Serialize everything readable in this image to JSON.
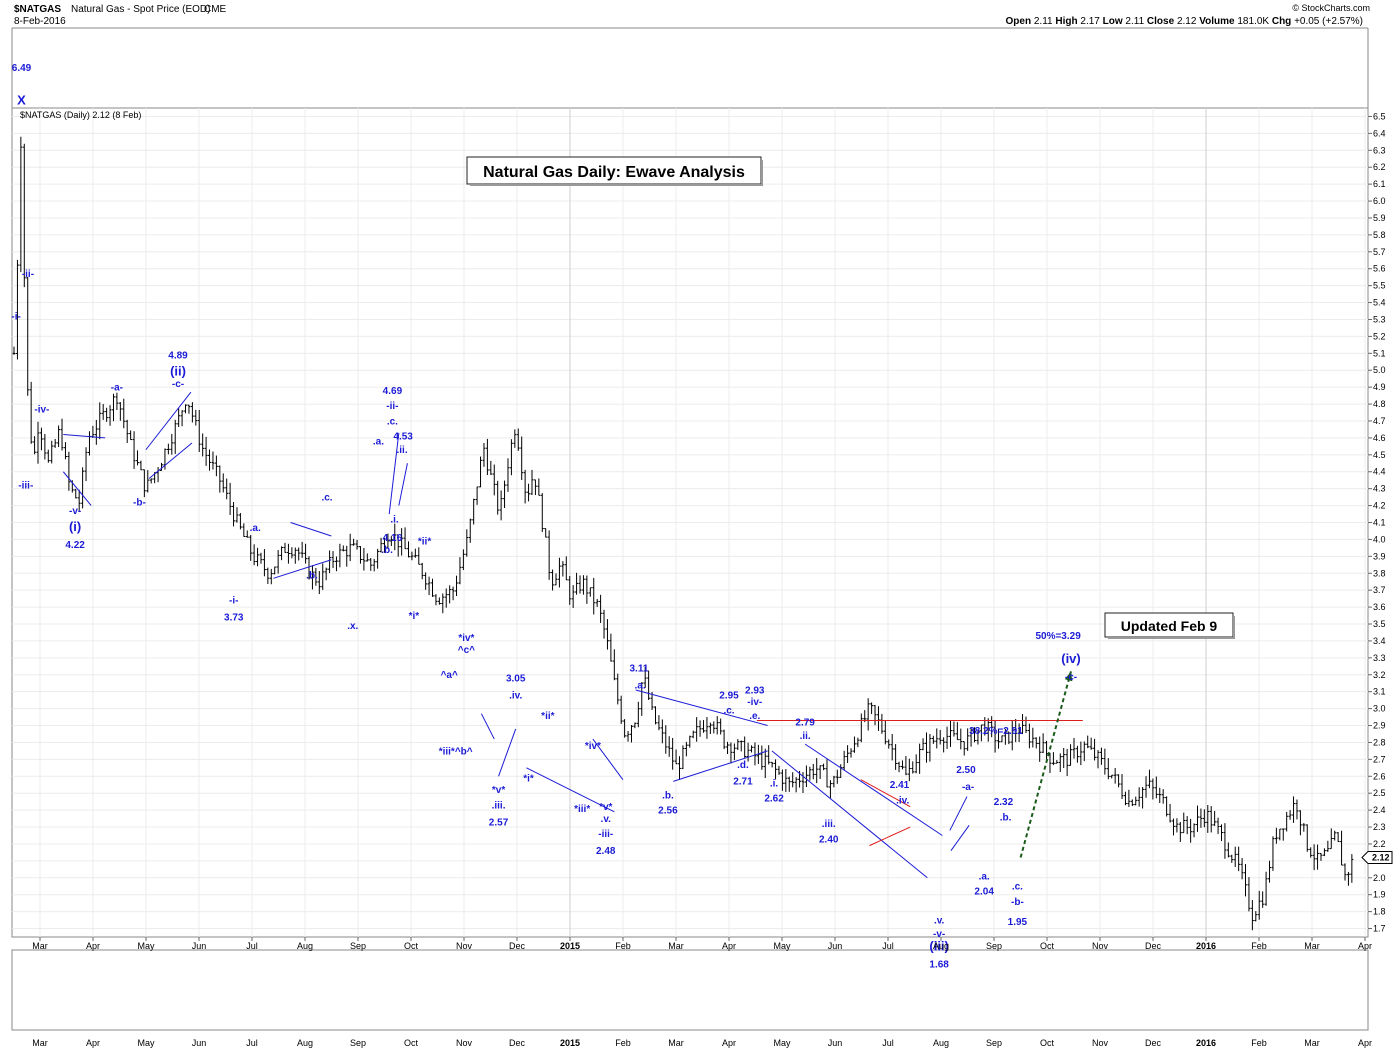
{
  "header": {
    "symbol": "$NATGAS",
    "description": "Natural Gas - Spot Price (EOD)",
    "exchange": "CME",
    "date": "8-Feb-2016",
    "ohlc_labels": [
      "Open",
      "High",
      "Low",
      "Close",
      "Volume",
      "Chg"
    ],
    "ohlc_values": [
      "2.11",
      "2.17",
      "2.11",
      "2.12",
      "181.0K",
      "+0.05 (+2.57%)"
    ],
    "copyright": "© StockCharts.com",
    "legend": "$NATGAS (Daily) 2.12 (8 Feb)"
  },
  "boxes": {
    "title": "Natural Gas Daily: Ewave Analysis",
    "updated": "Updated Feb 9"
  },
  "chart_data": {
    "type": "ohlc",
    "title": "Natural Gas Daily: Ewave Analysis",
    "ylim": [
      1.65,
      6.55
    ],
    "y_ticks": [
      "1.7",
      "1.8",
      "1.9",
      "2.0",
      "2.1",
      "2.2",
      "2.3",
      "2.4",
      "2.5",
      "2.6",
      "2.7",
      "2.8",
      "2.9",
      "3.0",
      "3.1",
      "3.2",
      "3.3",
      "3.4",
      "3.5",
      "3.6",
      "3.7",
      "3.8",
      "3.9",
      "4.0",
      "4.1",
      "4.2",
      "4.3",
      "4.4",
      "4.5",
      "4.6",
      "4.7",
      "4.8",
      "4.9",
      "5.0",
      "5.1",
      "5.2",
      "5.3",
      "5.4",
      "5.5",
      "5.6",
      "5.7",
      "5.8",
      "5.9",
      "6.0",
      "6.1",
      "6.2",
      "6.3",
      "6.4",
      "6.5"
    ],
    "last_price": "2.12",
    "months": [
      "Mar",
      "Apr",
      "May",
      "Jun",
      "Jul",
      "Aug",
      "Sep",
      "Oct",
      "Nov",
      "Dec",
      "2015",
      "Feb",
      "Mar",
      "Apr",
      "May",
      "Jun",
      "Jul",
      "Aug",
      "Sep",
      "Oct",
      "Nov",
      "Dec",
      "2016",
      "Feb",
      "Mar",
      "Apr"
    ],
    "anchors": [
      {
        "t": 0.0,
        "p": 5.1
      },
      {
        "t": 0.3,
        "p": 5.6
      },
      {
        "t": 0.7,
        "p": 6.49
      },
      {
        "t": 1.1,
        "p": 5.05
      },
      {
        "t": 1.4,
        "p": 4.75
      },
      {
        "t": 1.8,
        "p": 4.45
      },
      {
        "t": 2.3,
        "p": 4.7
      },
      {
        "t": 3.2,
        "p": 4.45
      },
      {
        "t": 4.3,
        "p": 4.65
      },
      {
        "t": 5.2,
        "p": 4.3
      },
      {
        "t": 6.1,
        "p": 4.22
      },
      {
        "t": 6.9,
        "p": 4.6
      },
      {
        "t": 8.5,
        "p": 4.75
      },
      {
        "t": 9.6,
        "p": 4.85
      },
      {
        "t": 10.9,
        "p": 4.55
      },
      {
        "t": 12.3,
        "p": 4.3
      },
      {
        "t": 13.6,
        "p": 4.45
      },
      {
        "t": 15.3,
        "p": 4.7
      },
      {
        "t": 16.1,
        "p": 4.85
      },
      {
        "t": 17.5,
        "p": 4.55
      },
      {
        "t": 19.2,
        "p": 4.35
      },
      {
        "t": 20.8,
        "p": 4.1
      },
      {
        "t": 22.3,
        "p": 3.9
      },
      {
        "t": 23.8,
        "p": 3.8
      },
      {
        "t": 25.3,
        "p": 3.95
      },
      {
        "t": 26.3,
        "p": 3.95
      },
      {
        "t": 27.6,
        "p": 3.8
      },
      {
        "t": 28.5,
        "p": 3.75
      },
      {
        "t": 29.9,
        "p": 3.9
      },
      {
        "t": 31.5,
        "p": 3.95
      },
      {
        "t": 33.3,
        "p": 3.85
      },
      {
        "t": 35.0,
        "p": 4.05
      },
      {
        "t": 37.0,
        "p": 3.9
      },
      {
        "t": 38.2,
        "p": 3.8
      },
      {
        "t": 39.5,
        "p": 3.65
      },
      {
        "t": 41.0,
        "p": 3.7
      },
      {
        "t": 42.3,
        "p": 4.0
      },
      {
        "t": 43.8,
        "p": 4.55
      },
      {
        "t": 45.3,
        "p": 4.15
      },
      {
        "t": 46.2,
        "p": 4.5
      },
      {
        "t": 46.8,
        "p": 4.68
      },
      {
        "t": 47.8,
        "p": 4.25
      },
      {
        "t": 48.5,
        "p": 4.4
      },
      {
        "t": 49.3,
        "p": 4.1
      },
      {
        "t": 50.1,
        "p": 3.75
      },
      {
        "t": 51.0,
        "p": 3.85
      },
      {
        "t": 52.0,
        "p": 3.65
      },
      {
        "t": 53.0,
        "p": 3.75
      },
      {
        "t": 54.5,
        "p": 3.6
      },
      {
        "t": 55.3,
        "p": 3.4
      },
      {
        "t": 56.0,
        "p": 3.15
      },
      {
        "t": 57.0,
        "p": 2.85
      },
      {
        "t": 58.0,
        "p": 2.95
      },
      {
        "t": 58.7,
        "p": 3.2
      },
      {
        "t": 59.6,
        "p": 2.95
      },
      {
        "t": 60.7,
        "p": 2.8
      },
      {
        "t": 61.8,
        "p": 2.65
      },
      {
        "t": 63.5,
        "p": 2.85
      },
      {
        "t": 65.0,
        "p": 2.95
      },
      {
        "t": 66.3,
        "p": 2.8
      },
      {
        "t": 68.4,
        "p": 2.75
      },
      {
        "t": 70.8,
        "p": 2.65
      },
      {
        "t": 72.3,
        "p": 2.55
      },
      {
        "t": 74.8,
        "p": 2.65
      },
      {
        "t": 76.3,
        "p": 2.55
      },
      {
        "t": 78.3,
        "p": 2.8
      },
      {
        "t": 79.8,
        "p": 3.0
      },
      {
        "t": 80.8,
        "p": 2.9
      },
      {
        "t": 82.0,
        "p": 2.75
      },
      {
        "t": 83.2,
        "p": 2.6
      },
      {
        "t": 84.6,
        "p": 2.75
      },
      {
        "t": 86.5,
        "p": 2.85
      },
      {
        "t": 88.7,
        "p": 2.8
      },
      {
        "t": 90.5,
        "p": 2.9
      },
      {
        "t": 92.0,
        "p": 2.8
      },
      {
        "t": 93.7,
        "p": 2.88
      },
      {
        "t": 95.5,
        "p": 2.8
      },
      {
        "t": 96.8,
        "p": 2.7
      },
      {
        "t": 98.3,
        "p": 2.7
      },
      {
        "t": 99.8,
        "p": 2.78
      },
      {
        "t": 101.2,
        "p": 2.7
      },
      {
        "t": 102.5,
        "p": 2.6
      },
      {
        "t": 104.0,
        "p": 2.45
      },
      {
        "t": 105.8,
        "p": 2.55
      },
      {
        "t": 107.2,
        "p": 2.45
      },
      {
        "t": 108.5,
        "p": 2.3
      },
      {
        "t": 109.8,
        "p": 2.3
      },
      {
        "t": 111.2,
        "p": 2.38
      },
      {
        "t": 112.6,
        "p": 2.25
      },
      {
        "t": 114.3,
        "p": 2.05
      },
      {
        "t": 115.5,
        "p": 1.78
      },
      {
        "t": 116.6,
        "p": 1.9
      },
      {
        "t": 117.6,
        "p": 2.25
      },
      {
        "t": 118.6,
        "p": 2.35
      },
      {
        "t": 119.6,
        "p": 2.45
      },
      {
        "t": 120.6,
        "p": 2.2
      },
      {
        "t": 121.6,
        "p": 2.1
      },
      {
        "t": 122.6,
        "p": 2.15
      },
      {
        "t": 123.3,
        "p": 2.25
      },
      {
        "t": 124.2,
        "p": 2.0
      },
      {
        "t": 125.0,
        "p": 2.12
      }
    ],
    "projection": {
      "from": "2.12",
      "to": "3.29"
    },
    "resistance": "2.93",
    "levels": [
      "50%=3.29",
      "38.2%=2.91"
    ],
    "annotations": [
      {
        "text": "6.49",
        "t": 0.7,
        "p": 6.77
      },
      {
        "text": "X",
        "t": 0.7,
        "p": 6.57,
        "size": "big"
      },
      {
        "text": "-i-",
        "t": 0.2,
        "p": 5.3
      },
      {
        "text": "-ii-",
        "t": 1.3,
        "p": 5.55
      },
      {
        "text": "-iii-",
        "t": 1.1,
        "p": 4.3
      },
      {
        "text": "-iv-",
        "t": 2.6,
        "p": 4.75
      },
      {
        "text": "-v-",
        "t": 5.7,
        "p": 4.15
      },
      {
        "text": "(i)",
        "t": 5.7,
        "p": 4.05,
        "size": "big"
      },
      {
        "text": "4.22",
        "t": 5.7,
        "p": 3.95
      },
      {
        "text": "4.89",
        "t": 15.3,
        "p": 5.07
      },
      {
        "text": "(ii)",
        "t": 15.3,
        "p": 4.97,
        "size": "big"
      },
      {
        "text": "-c-",
        "t": 15.3,
        "p": 4.9
      },
      {
        "text": "-a-",
        "t": 9.6,
        "p": 4.88
      },
      {
        "text": "-b-",
        "t": 11.7,
        "p": 4.2
      },
      {
        "text": "-i-",
        "t": 20.5,
        "p": 3.62
      },
      {
        "text": "3.73",
        "t": 20.5,
        "p": 3.52
      },
      {
        "text": ".a.",
        "t": 22.5,
        "p": 4.05
      },
      {
        "text": ".b.",
        "t": 27.8,
        "p": 3.77
      },
      {
        "text": ".c.",
        "t": 29.2,
        "p": 4.23
      },
      {
        "text": ".x.",
        "t": 31.6,
        "p": 3.47
      },
      {
        "text": ".a.",
        "t": 34.0,
        "p": 4.56
      },
      {
        "text": ".b.",
        "t": 34.8,
        "p": 3.92
      },
      {
        "text": "4.69",
        "t": 35.3,
        "p": 4.86
      },
      {
        "text": "-ii-",
        "t": 35.3,
        "p": 4.77
      },
      {
        "text": ".c.",
        "t": 35.3,
        "p": 4.68
      },
      {
        "text": "4.53",
        "t": 36.3,
        "p": 4.59
      },
      {
        "text": ".ii.",
        "t": 36.2,
        "p": 4.51
      },
      {
        "text": ".i.",
        "t": 35.5,
        "p": 4.1
      },
      {
        "text": "4.16",
        "t": 35.3,
        "p": 3.99
      },
      {
        "text": "*ii*",
        "t": 38.3,
        "p": 3.97
      },
      {
        "text": "*i*",
        "t": 37.3,
        "p": 3.53
      },
      {
        "text": "*iv*",
        "t": 42.2,
        "p": 3.4
      },
      {
        "text": "^c^",
        "t": 42.2,
        "p": 3.33
      },
      {
        "text": "^a^",
        "t": 40.6,
        "p": 3.18
      },
      {
        "text": "*iii*^b^",
        "t": 41.2,
        "p": 2.73
      },
      {
        "text": "*v*",
        "t": 45.2,
        "p": 2.5
      },
      {
        "text": ".iii.",
        "t": 45.2,
        "p": 2.41
      },
      {
        "text": "2.57",
        "t": 45.2,
        "p": 2.31
      },
      {
        "text": "3.05",
        "t": 46.8,
        "p": 3.16
      },
      {
        "text": ".iv.",
        "t": 46.8,
        "p": 3.06
      },
      {
        "text": "*i*",
        "t": 48.0,
        "p": 2.57
      },
      {
        "text": "*ii*",
        "t": 49.8,
        "p": 2.94
      },
      {
        "text": "*iii*",
        "t": 53.0,
        "p": 2.39
      },
      {
        "text": "*iv*",
        "t": 54.0,
        "p": 2.76
      },
      {
        "text": "*v*",
        "t": 55.2,
        "p": 2.4
      },
      {
        "text": ".v.",
        "t": 55.2,
        "p": 2.33
      },
      {
        "text": "-iii-",
        "t": 55.2,
        "p": 2.24
      },
      {
        "text": "2.48",
        "t": 55.2,
        "p": 2.14
      },
      {
        "text": "3.11",
        "t": 58.3,
        "p": 3.22
      },
      {
        "text": ".a.",
        "t": 58.4,
        "p": 3.12
      },
      {
        "text": ".b.",
        "t": 61.0,
        "p": 2.47
      },
      {
        "text": "2.56",
        "t": 61.0,
        "p": 2.38
      },
      {
        "text": "2.95",
        "t": 66.7,
        "p": 3.06
      },
      {
        "text": ".c.",
        "t": 66.7,
        "p": 2.97
      },
      {
        "text": ".d.",
        "t": 68.0,
        "p": 2.65
      },
      {
        "text": "2.71",
        "t": 68.0,
        "p": 2.55
      },
      {
        "text": "2.93",
        "t": 69.1,
        "p": 3.09
      },
      {
        "text": "-iv-",
        "t": 69.1,
        "p": 3.02
      },
      {
        "text": ".e.",
        "t": 69.1,
        "p": 2.94
      },
      {
        "text": ".i.",
        "t": 70.9,
        "p": 2.54
      },
      {
        "text": "2.62",
        "t": 70.9,
        "p": 2.45
      },
      {
        "text": "2.79",
        "t": 73.8,
        "p": 2.9
      },
      {
        "text": ".ii.",
        "t": 73.8,
        "p": 2.82
      },
      {
        "text": ".iii.",
        "t": 76.0,
        "p": 2.3
      },
      {
        "text": "2.40",
        "t": 76.0,
        "p": 2.21
      },
      {
        "text": "2.41",
        "t": 82.6,
        "p": 2.53
      },
      {
        "text": ".iv.",
        "t": 82.9,
        "p": 2.44
      },
      {
        "text": ".v.",
        "t": 86.3,
        "p": 1.73
      },
      {
        "text": "-v-",
        "t": 86.3,
        "p": 1.65
      },
      {
        "text": "(iii)",
        "t": 86.3,
        "p": 1.57,
        "size": "big"
      },
      {
        "text": "1.68",
        "t": 86.3,
        "p": 1.47
      },
      {
        "text": "2.50",
        "t": 88.8,
        "p": 2.62
      },
      {
        "text": "-a-",
        "t": 89.0,
        "p": 2.52
      },
      {
        "text": ".a.",
        "t": 90.5,
        "p": 1.99
      },
      {
        "text": "2.04",
        "t": 90.5,
        "p": 1.9
      },
      {
        "text": "2.32",
        "t": 92.3,
        "p": 2.43
      },
      {
        "text": ".b.",
        "t": 92.5,
        "p": 2.34
      },
      {
        "text": ".c.",
        "t": 93.6,
        "p": 1.93
      },
      {
        "text": "-b-",
        "t": 93.6,
        "p": 1.84
      },
      {
        "text": "1.95",
        "t": 93.6,
        "p": 1.72
      },
      {
        "text": "50%=3.29",
        "t": 97.4,
        "p": 3.41
      },
      {
        "text": "(iv)",
        "t": 98.6,
        "p": 3.27,
        "size": "big"
      },
      {
        "text": "-c-",
        "t": 98.6,
        "p": 3.17
      },
      {
        "text": "38.2%=2.91",
        "t": 91.6,
        "p": 2.85
      }
    ],
    "trendlines": [
      {
        "color": "blue",
        "pts": [
          [
            4.6,
            4.62
          ],
          [
            8.5,
            4.6
          ]
        ]
      },
      {
        "color": "blue",
        "pts": [
          [
            4.6,
            4.4
          ],
          [
            7.2,
            4.2
          ]
        ]
      },
      {
        "color": "blue",
        "pts": [
          [
            12.3,
            4.53
          ],
          [
            16.5,
            4.87
          ]
        ]
      },
      {
        "color": "blue",
        "pts": [
          [
            12.6,
            4.36
          ],
          [
            16.6,
            4.57
          ]
        ]
      },
      {
        "color": "blue",
        "pts": [
          [
            24.2,
            3.77
          ],
          [
            29.6,
            3.88
          ]
        ]
      },
      {
        "color": "blue",
        "pts": [
          [
            25.8,
            4.1
          ],
          [
            29.6,
            4.02
          ]
        ]
      },
      {
        "color": "blue",
        "pts": [
          [
            35.0,
            4.15
          ],
          [
            35.9,
            4.63
          ]
        ]
      },
      {
        "color": "blue",
        "pts": [
          [
            35.9,
            4.2
          ],
          [
            36.7,
            4.45
          ]
        ]
      },
      {
        "color": "blue",
        "pts": [
          [
            43.6,
            2.97
          ],
          [
            44.8,
            2.82
          ]
        ]
      },
      {
        "color": "blue",
        "pts": [
          [
            45.2,
            2.6
          ],
          [
            46.8,
            2.88
          ]
        ]
      },
      {
        "color": "blue",
        "pts": [
          [
            47.8,
            2.65
          ],
          [
            56.0,
            2.39
          ]
        ]
      },
      {
        "color": "blue",
        "pts": [
          [
            54.0,
            2.82
          ],
          [
            56.8,
            2.58
          ]
        ]
      },
      {
        "color": "blue",
        "pts": [
          [
            58.0,
            3.11
          ],
          [
            70.3,
            2.9
          ]
        ]
      },
      {
        "color": "blue",
        "pts": [
          [
            61.5,
            2.57
          ],
          [
            70.3,
            2.75
          ]
        ]
      },
      {
        "color": "blue",
        "pts": [
          [
            70.7,
            2.75
          ],
          [
            85.2,
            2.0
          ]
        ]
      },
      {
        "color": "blue",
        "pts": [
          [
            73.8,
            2.79
          ],
          [
            86.6,
            2.25
          ]
        ]
      },
      {
        "color": "red",
        "pts": [
          [
            79.0,
            2.58
          ],
          [
            83.6,
            2.42
          ]
        ]
      },
      {
        "color": "red",
        "pts": [
          [
            79.8,
            2.19
          ],
          [
            83.6,
            2.3
          ]
        ]
      },
      {
        "color": "blue",
        "pts": [
          [
            87.3,
            2.28
          ],
          [
            88.9,
            2.48
          ]
        ]
      },
      {
        "color": "blue",
        "pts": [
          [
            87.4,
            2.16
          ],
          [
            89.1,
            2.31
          ]
        ]
      }
    ]
  }
}
